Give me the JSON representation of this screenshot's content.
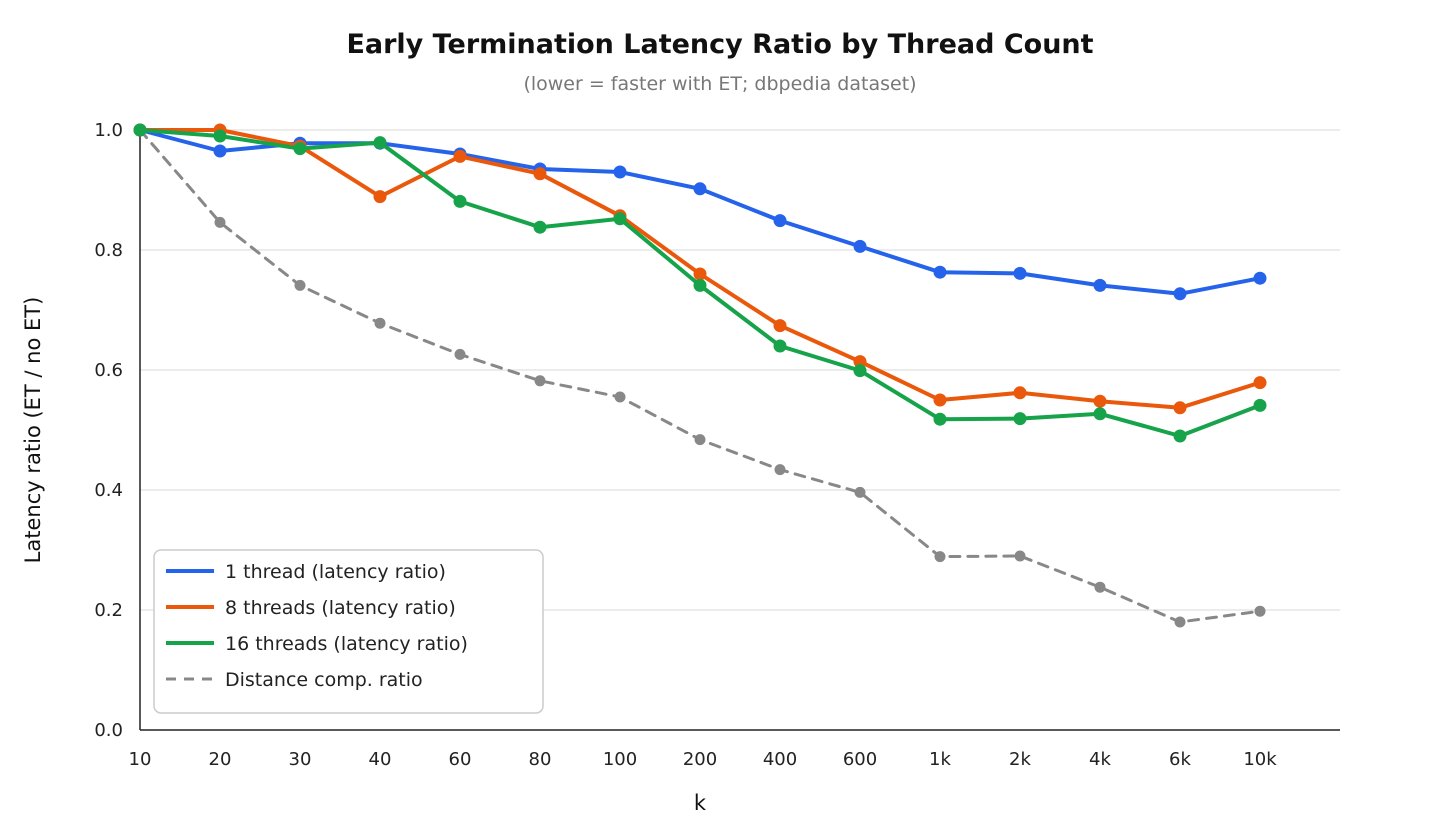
{
  "chart_data": {
    "type": "line",
    "title": "Early Termination Latency Ratio by Thread Count",
    "subtitle": "(lower = faster with ET; dbpedia dataset)",
    "xlabel": "k",
    "ylabel": "Latency ratio (ET / no ET)",
    "categories": [
      "10",
      "20",
      "30",
      "40",
      "60",
      "80",
      "100",
      "200",
      "400",
      "600",
      "1k",
      "2k",
      "4k",
      "6k",
      "10k"
    ],
    "ylim": [
      0,
      1.0
    ],
    "yticks": [
      "0.0",
      "0.2",
      "0.4",
      "0.6",
      "0.8",
      "1.0"
    ],
    "grid": true,
    "legend_position": "bottom-left",
    "series": [
      {
        "name": "1 thread (latency ratio)",
        "color": "#2563eb",
        "style": "solid",
        "values": [
          1.0,
          0.965,
          0.978,
          0.978,
          0.96,
          0.935,
          0.93,
          0.902,
          0.849,
          0.806,
          0.763,
          0.761,
          0.741,
          0.727,
          0.753
        ]
      },
      {
        "name": "8 threads (latency ratio)",
        "color": "#ea580c",
        "style": "solid",
        "values": [
          1.0,
          1.0,
          0.973,
          0.889,
          0.956,
          0.927,
          0.857,
          0.76,
          0.674,
          0.614,
          0.55,
          0.562,
          0.548,
          0.537,
          0.579
        ]
      },
      {
        "name": "16 threads (latency ratio)",
        "color": "#16a34a",
        "style": "solid",
        "values": [
          1.0,
          0.99,
          0.969,
          0.979,
          0.881,
          0.838,
          0.852,
          0.741,
          0.64,
          0.599,
          0.518,
          0.519,
          0.527,
          0.49,
          0.541
        ]
      },
      {
        "name": "Distance comp. ratio",
        "color": "#888888",
        "style": "dashed",
        "values": [
          1.0,
          0.846,
          0.741,
          0.678,
          0.626,
          0.582,
          0.555,
          0.484,
          0.434,
          0.396,
          0.289,
          0.29,
          0.238,
          0.18,
          0.198
        ]
      }
    ]
  }
}
